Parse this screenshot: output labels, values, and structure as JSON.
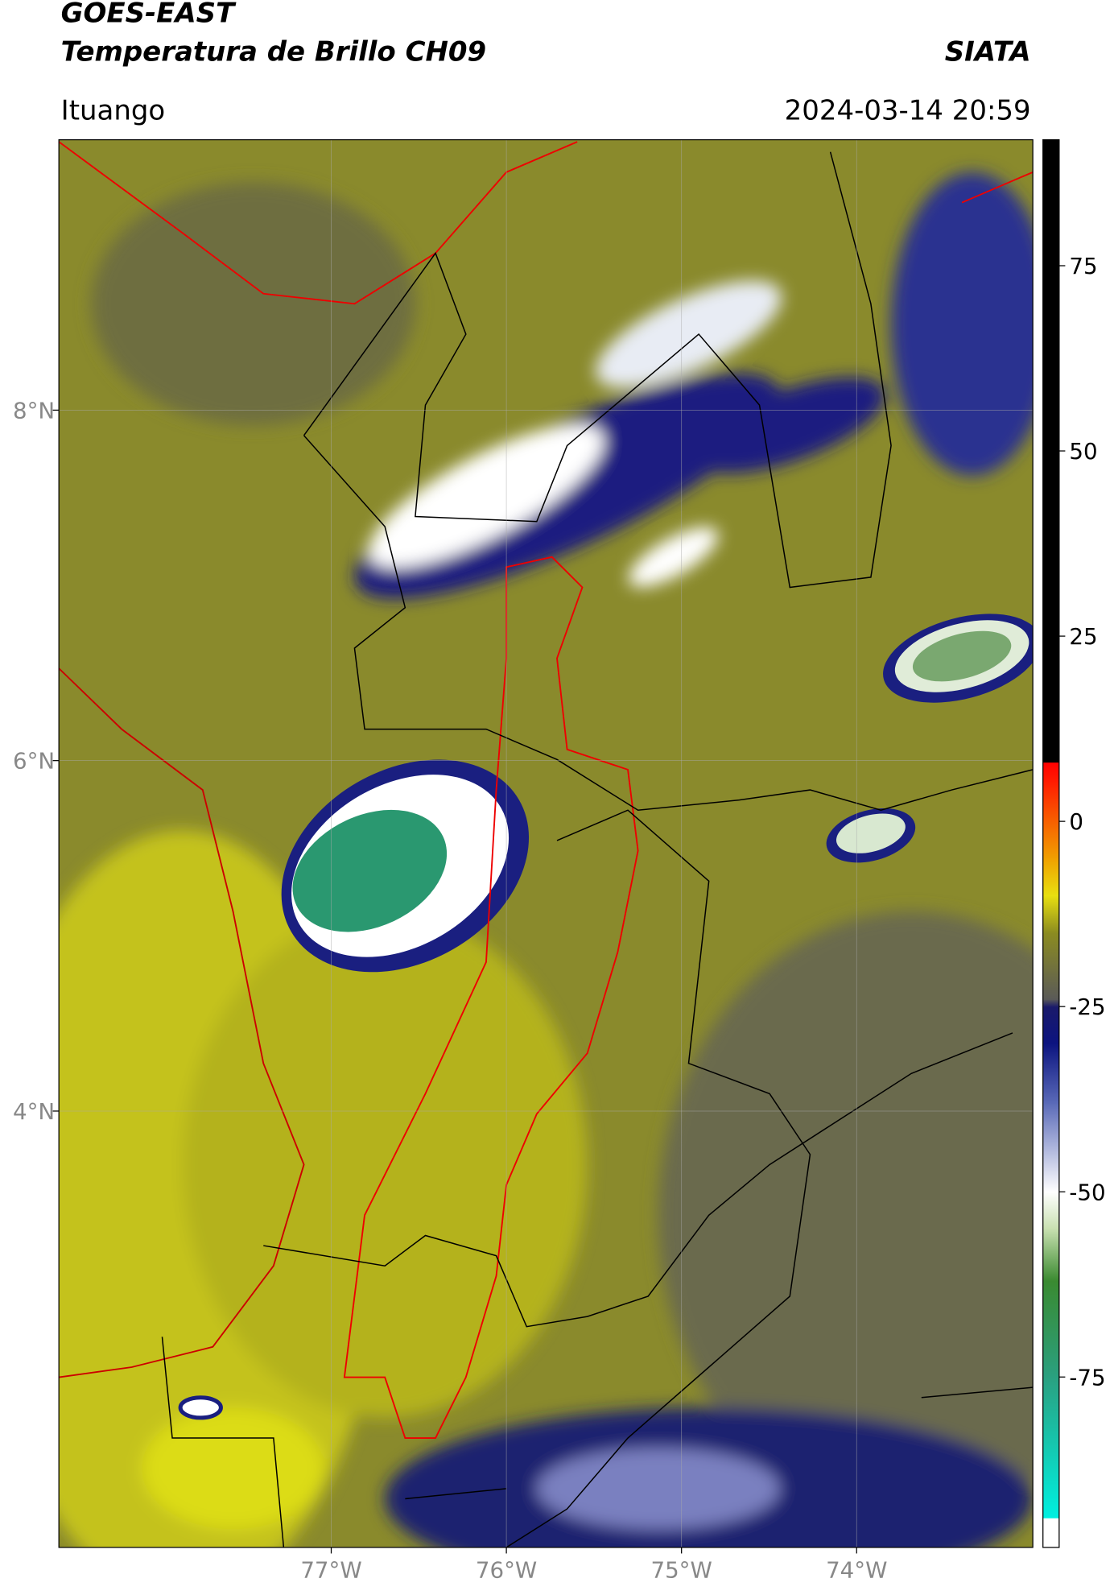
{
  "chart_data": {
    "type": "map",
    "title": "GOES-EAST",
    "subtitle": "Temperatura de Brillo CH09",
    "source": "SIATA",
    "location": "Ituango",
    "datetime": "2024-03-14 20:59",
    "xlim": [
      -78.555,
      -72.994
    ],
    "ylim": [
      1.51,
      9.543
    ],
    "xticks": [
      {
        "value": -77,
        "label": "77°W"
      },
      {
        "value": -76,
        "label": "76°W"
      },
      {
        "value": -75,
        "label": "75°W"
      },
      {
        "value": -74,
        "label": "74°W"
      }
    ],
    "yticks": [
      {
        "value": 4,
        "label": "4°N"
      },
      {
        "value": 6,
        "label": "6°N"
      },
      {
        "value": 8,
        "label": "8°N"
      }
    ],
    "grid": true,
    "colorbar": {
      "lim": [
        -98,
        92
      ],
      "ticks": [
        -75,
        -50,
        -25,
        0,
        25,
        50,
        75
      ],
      "stops": [
        {
          "value": -98,
          "color": "#ffffff"
        },
        {
          "value": -94,
          "color": "#ffffff"
        },
        {
          "value": -94,
          "color": "#00f0e0"
        },
        {
          "value": -75,
          "color": "#2aa080"
        },
        {
          "value": -62,
          "color": "#3a8a30"
        },
        {
          "value": -55,
          "color": "#c8e0b0"
        },
        {
          "value": -50,
          "color": "#ffffff"
        },
        {
          "value": -38,
          "color": "#5a6ab8"
        },
        {
          "value": -30,
          "color": "#0c1480"
        },
        {
          "value": -25,
          "color": "#1a1a6a"
        },
        {
          "value": -24,
          "color": "#5a5a58"
        },
        {
          "value": -15,
          "color": "#8c8c20"
        },
        {
          "value": -10,
          "color": "#e8e010"
        },
        {
          "value": -5,
          "color": "#f0a000"
        },
        {
          "value": 5,
          "color": "#ff2000"
        },
        {
          "value": 8,
          "color": "#ff0000"
        },
        {
          "value": 8,
          "color": "#000000"
        },
        {
          "value": 92,
          "color": "#000000"
        }
      ]
    }
  }
}
